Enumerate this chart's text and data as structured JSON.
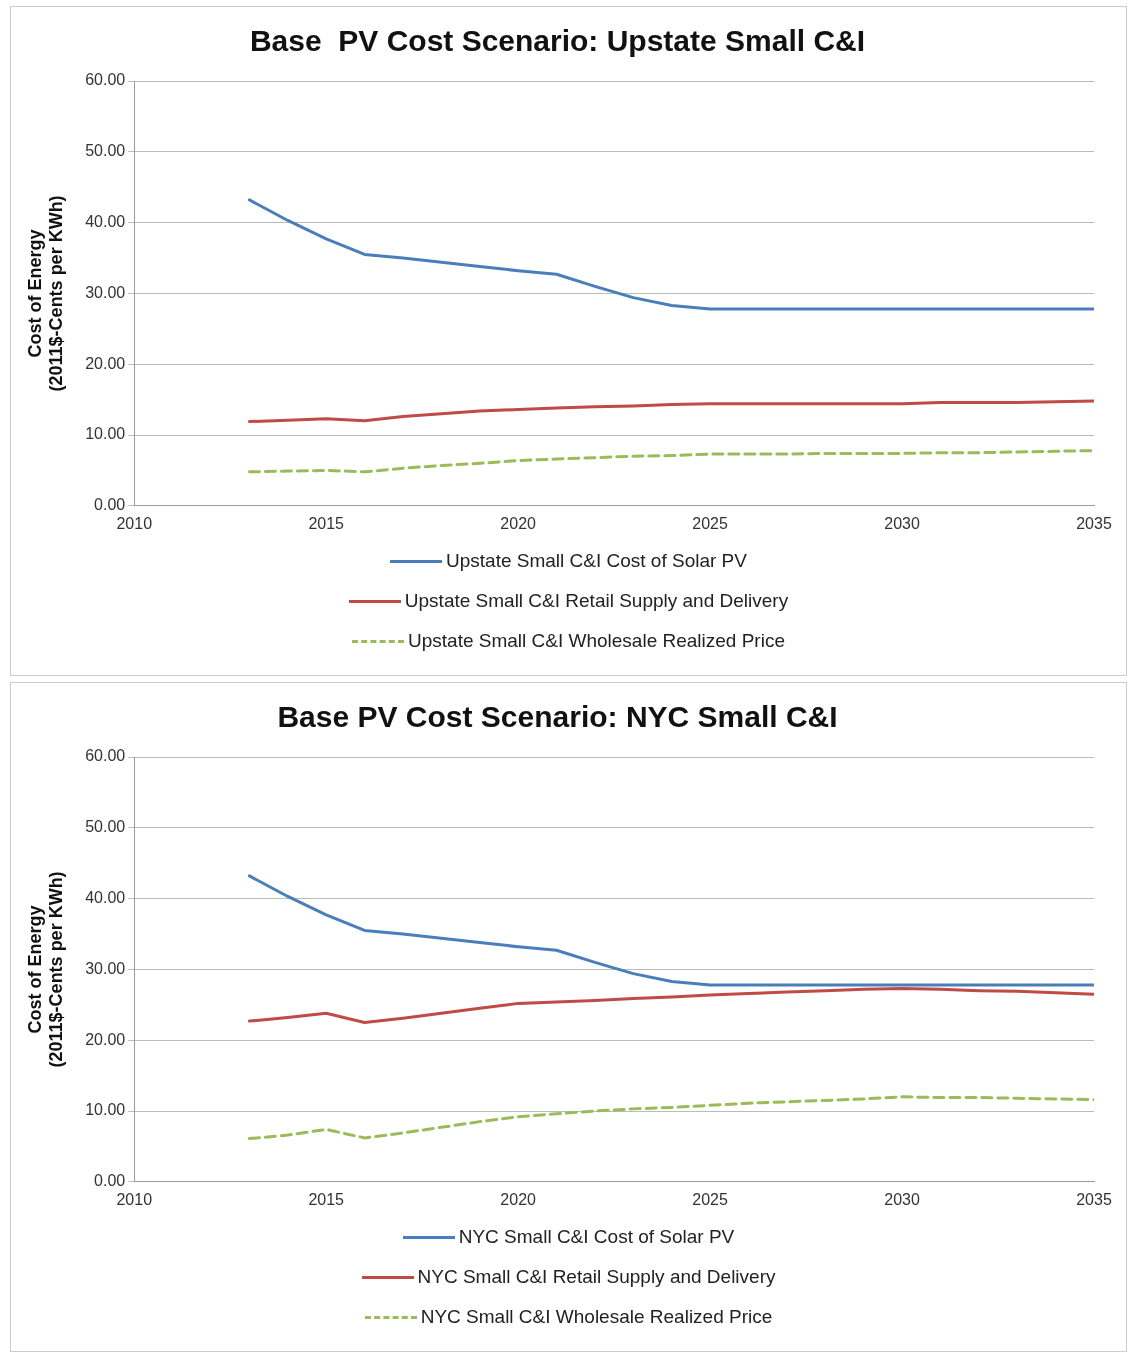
{
  "chart_data": [
    {
      "type": "line",
      "title": "Base  PV Cost Scenario: Upstate Small C&I",
      "ylabel": "Cost of Energy\n(2011$-Cents per KWh)",
      "x": [
        2013,
        2014,
        2015,
        2016,
        2017,
        2018,
        2019,
        2020,
        2021,
        2022,
        2023,
        2024,
        2025,
        2026,
        2027,
        2028,
        2029,
        2030,
        2031,
        2032,
        2033,
        2034,
        2035
      ],
      "xlim": [
        2010,
        2035
      ],
      "xticks": [
        2010,
        2015,
        2020,
        2025,
        2030,
        2035
      ],
      "ylim": [
        0,
        60
      ],
      "yticks": [
        {
          "value": 0,
          "label": "0.00"
        },
        {
          "value": 10,
          "label": "10.00"
        },
        {
          "value": 20,
          "label": "20.00"
        },
        {
          "value": 30,
          "label": "30.00"
        },
        {
          "value": 40,
          "label": "40.00"
        },
        {
          "value": 50,
          "label": "50.00"
        },
        {
          "value": 60,
          "label": "60.00"
        }
      ],
      "grid": "y",
      "legend": "bottom",
      "marker": "none",
      "series": [
        {
          "name": "Upstate Small C&I Cost of Solar PV",
          "color": "#4a7ebb",
          "line_style": "solid",
          "values": [
            43.2,
            40.3,
            37.7,
            35.5,
            35.0,
            34.4,
            33.8,
            33.2,
            32.7,
            31.0,
            29.4,
            28.3,
            27.8,
            27.8,
            27.8,
            27.8,
            27.8,
            27.8,
            27.8,
            27.8,
            27.8,
            27.8,
            27.8
          ]
        },
        {
          "name": "Upstate Small C&I Retail Supply and Delivery",
          "color": "#be4b48",
          "line_style": "solid",
          "values": [
            11.9,
            12.1,
            12.3,
            12.0,
            12.6,
            13.0,
            13.4,
            13.6,
            13.8,
            14.0,
            14.1,
            14.3,
            14.4,
            14.4,
            14.4,
            14.4,
            14.4,
            14.4,
            14.6,
            14.6,
            14.6,
            14.7,
            14.8
          ]
        },
        {
          "name": "Upstate Small C&I Wholesale Realized Price",
          "color": "#9bbb59",
          "line_style": "dashed",
          "values": [
            4.8,
            4.9,
            5.0,
            4.8,
            5.3,
            5.7,
            6.0,
            6.4,
            6.6,
            6.8,
            7.0,
            7.1,
            7.3,
            7.3,
            7.3,
            7.4,
            7.4,
            7.4,
            7.5,
            7.5,
            7.6,
            7.7,
            7.8
          ]
        }
      ]
    },
    {
      "type": "line",
      "title": "Base PV Cost Scenario: NYC Small C&I",
      "ylabel": "Cost of Energy\n(2011$-Cents per KWh)",
      "x": [
        2013,
        2014,
        2015,
        2016,
        2017,
        2018,
        2019,
        2020,
        2021,
        2022,
        2023,
        2024,
        2025,
        2026,
        2027,
        2028,
        2029,
        2030,
        2031,
        2032,
        2033,
        2034,
        2035
      ],
      "xlim": [
        2010,
        2035
      ],
      "xticks": [
        2010,
        2015,
        2020,
        2025,
        2030,
        2035
      ],
      "ylim": [
        0,
        60
      ],
      "yticks": [
        {
          "value": 0,
          "label": "0.00"
        },
        {
          "value": 10,
          "label": "10.00"
        },
        {
          "value": 20,
          "label": "20.00"
        },
        {
          "value": 30,
          "label": "30.00"
        },
        {
          "value": 40,
          "label": "40.00"
        },
        {
          "value": 50,
          "label": "50.00"
        },
        {
          "value": 60,
          "label": "60.00"
        }
      ],
      "grid": "y",
      "legend": "bottom",
      "marker": "none",
      "series": [
        {
          "name": "NYC Small C&I Cost of Solar PV",
          "color": "#4a7ebb",
          "line_style": "solid",
          "values": [
            43.2,
            40.3,
            37.7,
            35.5,
            35.0,
            34.4,
            33.8,
            33.2,
            32.7,
            31.0,
            29.4,
            28.3,
            27.8,
            27.8,
            27.8,
            27.8,
            27.8,
            27.8,
            27.8,
            27.8,
            27.8,
            27.8,
            27.8
          ]
        },
        {
          "name": "NYC Small C&I Retail Supply and Delivery",
          "color": "#be4b48",
          "line_style": "solid",
          "values": [
            22.7,
            23.2,
            23.8,
            22.5,
            23.1,
            23.8,
            24.5,
            25.2,
            25.4,
            25.6,
            25.9,
            26.1,
            26.4,
            26.6,
            26.8,
            27.0,
            27.2,
            27.3,
            27.2,
            27.0,
            26.9,
            26.7,
            26.5
          ]
        },
        {
          "name": "NYC Small C&I Wholesale Realized Price",
          "color": "#9bbb59",
          "line_style": "dashed",
          "values": [
            6.1,
            6.6,
            7.4,
            6.2,
            6.9,
            7.7,
            8.5,
            9.2,
            9.6,
            10.0,
            10.3,
            10.5,
            10.8,
            11.1,
            11.3,
            11.5,
            11.7,
            12.0,
            11.9,
            11.9,
            11.8,
            11.7,
            11.6
          ]
        }
      ]
    }
  ]
}
